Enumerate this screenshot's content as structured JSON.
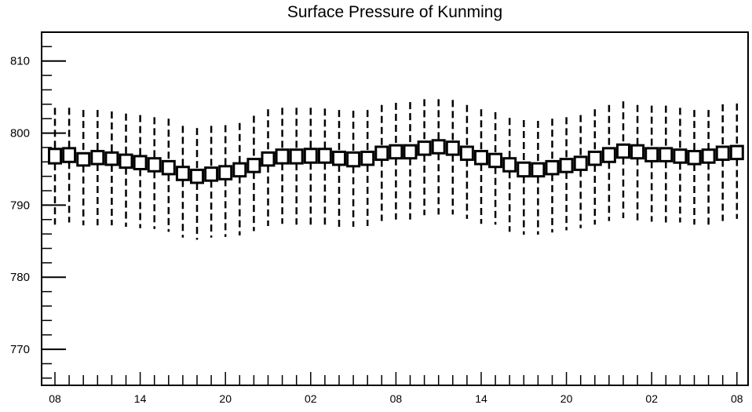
{
  "chart_data": {
    "type": "boxplot",
    "title": "Surface Pressure of Kunming",
    "xlabel": "",
    "ylabel": "",
    "ylim": [
      765,
      814
    ],
    "y_ticks": [
      770,
      780,
      790,
      800,
      810
    ],
    "x_tick_labels": [
      "08",
      "14",
      "20",
      "02",
      "08",
      "14",
      "20",
      "02",
      "08"
    ],
    "x_tick_step": 6,
    "grid": false,
    "series": [
      {
        "hours": [
          8,
          9,
          10,
          11,
          12,
          13,
          14,
          15,
          16,
          17,
          18,
          19,
          20,
          21,
          22,
          23,
          0,
          1,
          2,
          3,
          4,
          5,
          6,
          7,
          8,
          9,
          10,
          11,
          12,
          13,
          14,
          15,
          16,
          17,
          18,
          19,
          20,
          21,
          22,
          23,
          0,
          1,
          2,
          3,
          4,
          5,
          6,
          7,
          8
        ],
        "box_low": [
          795.8,
          796.0,
          795.5,
          795.7,
          795.6,
          795.2,
          795.0,
          794.7,
          794.3,
          793.5,
          793.1,
          793.4,
          793.6,
          794.0,
          794.6,
          795.5,
          795.8,
          795.8,
          795.9,
          795.9,
          795.6,
          795.4,
          795.6,
          796.3,
          796.5,
          796.5,
          797.0,
          797.2,
          797.0,
          796.3,
          795.7,
          795.3,
          794.7,
          794.0,
          794.0,
          794.3,
          794.6,
          794.9,
          795.6,
          796.0,
          796.6,
          796.5,
          796.1,
          796.1,
          795.9,
          795.7,
          795.9,
          796.3,
          796.4
        ],
        "box_high": [
          797.8,
          797.9,
          797.2,
          797.5,
          797.3,
          797.0,
          796.8,
          796.5,
          796.1,
          795.3,
          794.9,
          795.2,
          795.4,
          795.8,
          796.4,
          797.3,
          797.7,
          797.7,
          797.8,
          797.8,
          797.4,
          797.3,
          797.4,
          798.1,
          798.3,
          798.3,
          798.8,
          799.0,
          798.8,
          798.1,
          797.5,
          797.1,
          796.5,
          795.9,
          795.8,
          796.1,
          796.4,
          796.7,
          797.4,
          797.9,
          798.4,
          798.3,
          797.9,
          797.9,
          797.7,
          797.5,
          797.7,
          798.1,
          798.2
        ],
        "whisker_low": [
          787.3,
          787.6,
          787.2,
          787.2,
          787.2,
          787.0,
          786.8,
          786.7,
          786.3,
          785.5,
          785.2,
          785.5,
          785.6,
          785.8,
          786.4,
          787.1,
          787.4,
          787.3,
          787.3,
          787.3,
          787.0,
          787.0,
          787.1,
          787.8,
          788.0,
          788.0,
          788.6,
          788.7,
          788.7,
          788.1,
          787.4,
          787.3,
          786.3,
          785.9,
          785.9,
          786.2,
          786.5,
          786.8,
          787.3,
          787.8,
          788.2,
          787.9,
          787.7,
          787.6,
          787.6,
          787.3,
          787.3,
          787.8,
          788.1
        ],
        "whisker_high": [
          803.5,
          803.5,
          803.2,
          803.2,
          803.0,
          802.7,
          802.5,
          802.2,
          802.0,
          801.0,
          800.7,
          801.0,
          801.1,
          801.4,
          802.4,
          803.3,
          803.5,
          803.5,
          803.5,
          803.4,
          803.2,
          803.1,
          803.2,
          803.9,
          804.2,
          804.3,
          804.7,
          804.7,
          804.6,
          803.9,
          803.3,
          802.9,
          802.1,
          801.8,
          801.7,
          802.0,
          802.2,
          802.5,
          803.3,
          803.9,
          804.4,
          803.9,
          803.8,
          803.8,
          803.5,
          803.2,
          803.2,
          804.0,
          804.1
        ]
      }
    ]
  }
}
